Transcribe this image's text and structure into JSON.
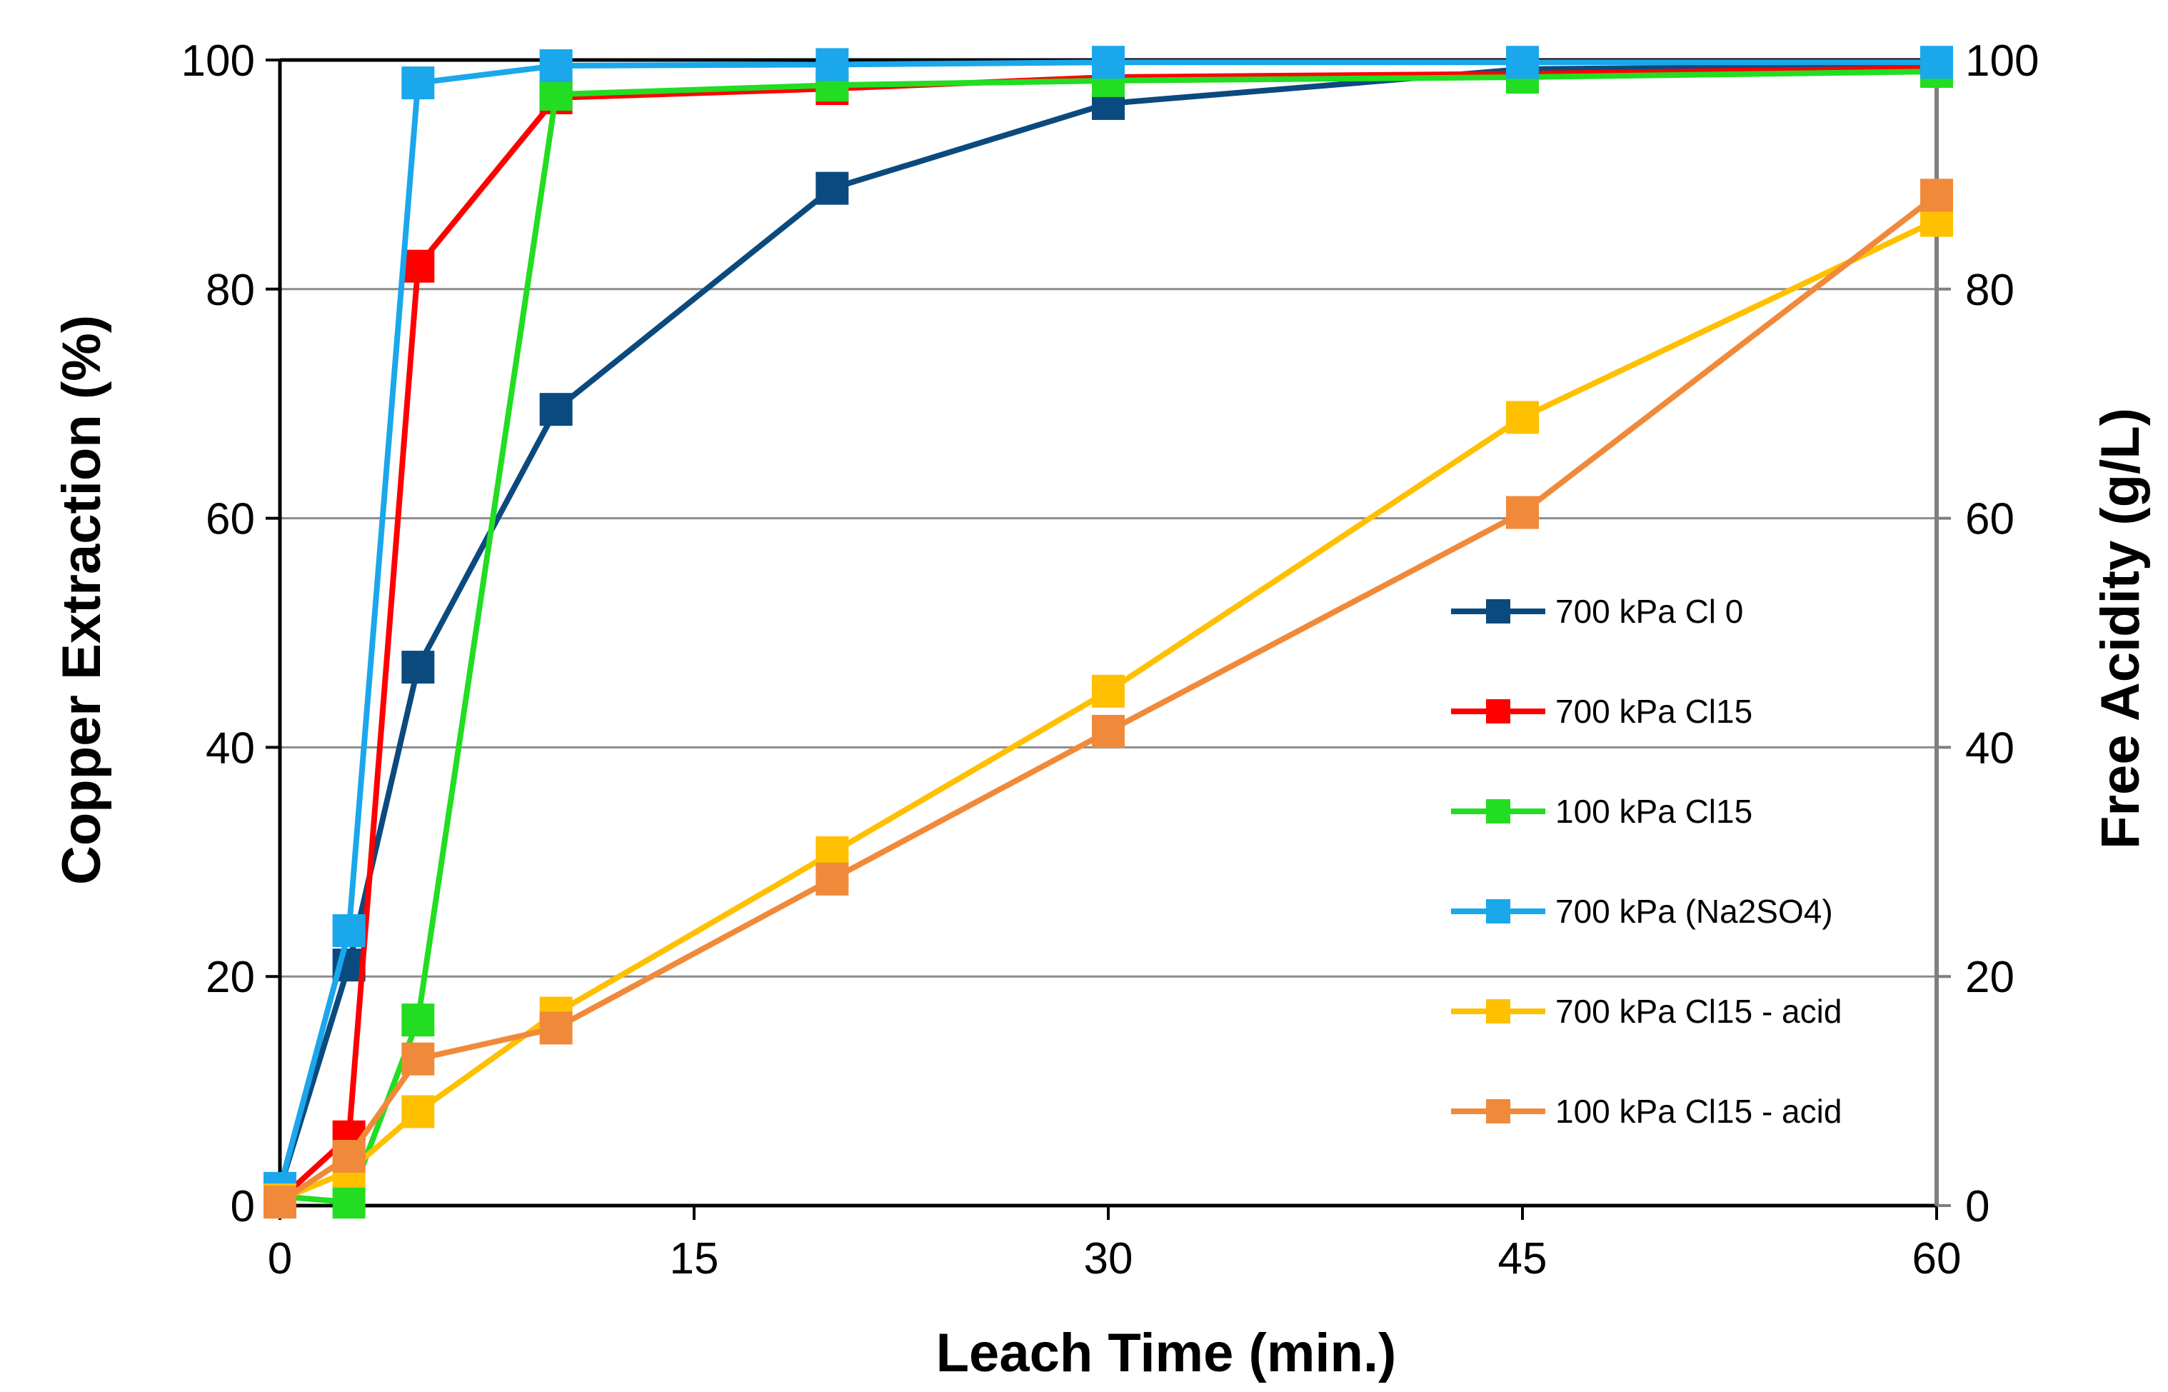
{
  "chart_data": {
    "type": "line",
    "title": "",
    "xlabel": "Leach Time (min.)",
    "ylabel_left": "Copper Extraction (%)",
    "ylabel_right": "Free Acidity (g/L)",
    "xlim": [
      0,
      60
    ],
    "ylim_left": [
      0,
      100
    ],
    "ylim_right": [
      0,
      100
    ],
    "x_ticks": [
      "0",
      "15",
      "30",
      "45",
      "60"
    ],
    "y_ticks_left": [
      "0",
      "20",
      "40",
      "60",
      "80",
      "100"
    ],
    "y_ticks_right": [
      "0",
      "20",
      "40",
      "60",
      "80",
      "100"
    ],
    "grid": true,
    "legend_position": "right-middle",
    "series": [
      {
        "name": "700 kPa Cl 0",
        "axis": "left",
        "color": "#0B4A7E",
        "x": [
          0,
          2.5,
          5,
          10,
          20,
          30,
          45,
          60
        ],
        "y": [
          1.5,
          21,
          47,
          69.5,
          88.8,
          96.2,
          99.2,
          99.5
        ]
      },
      {
        "name": "700 kPa Cl15",
        "axis": "left",
        "color": "#FF0000",
        "x": [
          0,
          2.5,
          5,
          10,
          20,
          30,
          45,
          60
        ],
        "y": [
          0.5,
          6,
          82,
          96.7,
          97.5,
          98.5,
          98.8,
          99.3
        ]
      },
      {
        "name": "100 kPa Cl15",
        "axis": "left",
        "color": "#22DD22",
        "x": [
          0,
          2.5,
          5,
          10,
          20,
          30,
          45,
          60
        ],
        "y": [
          0.8,
          0.3,
          16.2,
          97,
          97.8,
          98.2,
          98.5,
          99
        ]
      },
      {
        "name": "700 kPa (Na2SO4)",
        "axis": "left",
        "color": "#1AA7EC",
        "x": [
          0,
          2.5,
          5,
          10,
          20,
          30,
          45,
          60
        ],
        "y": [
          1.5,
          24,
          98,
          99.5,
          99.6,
          99.8,
          99.8,
          99.8
        ]
      },
      {
        "name": "700 kPa Cl15 - acid",
        "axis": "right",
        "color": "#FFC000",
        "x": [
          0,
          2.5,
          5,
          10,
          20,
          30,
          45,
          60
        ],
        "y": [
          0.5,
          3,
          8.2,
          16.8,
          30.8,
          44.9,
          68.8,
          86
        ]
      },
      {
        "name": "100 kPa Cl15 - acid",
        "axis": "right",
        "color": "#F08A3A",
        "x": [
          0,
          2.5,
          5,
          10,
          20,
          30,
          45,
          60
        ],
        "y": [
          0.3,
          4.3,
          12.8,
          15.5,
          28.5,
          41.4,
          60.5,
          88.2
        ]
      }
    ]
  }
}
